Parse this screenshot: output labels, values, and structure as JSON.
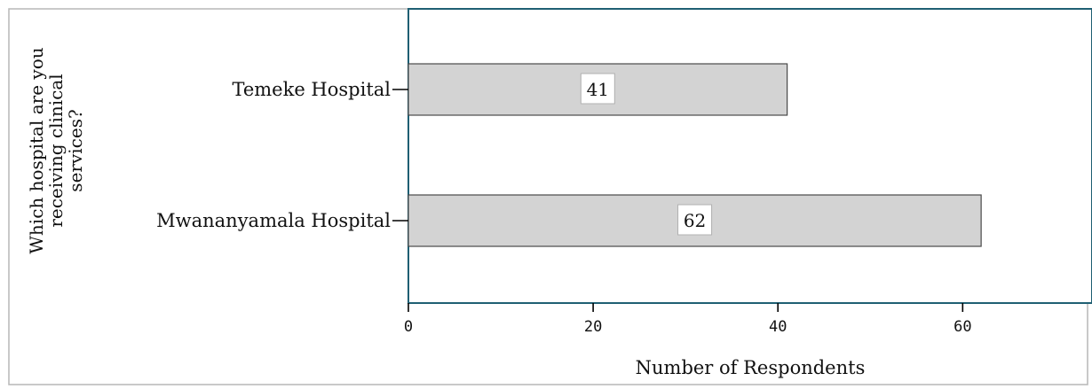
{
  "chart_data": {
    "type": "bar",
    "orientation": "horizontal",
    "categories": [
      "Temeke Hospital",
      "Mwananyamala Hospital"
    ],
    "values": [
      41,
      62
    ],
    "data_labels": [
      "41",
      "62"
    ],
    "title": "",
    "xlabel": "Number of Respondents",
    "ylabel": "Which hospital are you receiving clinical services?",
    "ylabel_lines": [
      "Which hospital are you",
      "receiving clinical",
      "services?"
    ],
    "xlim": [
      0,
      74
    ],
    "xticks": [
      0,
      20,
      40,
      60
    ],
    "xtick_labels": [
      "0",
      "20",
      "40",
      "60"
    ],
    "grid": false,
    "legend": "none",
    "bar_color": "#d3d3d3",
    "bar_edge_color": "#4a4a4a",
    "frame_color": "#1f5f73"
  }
}
